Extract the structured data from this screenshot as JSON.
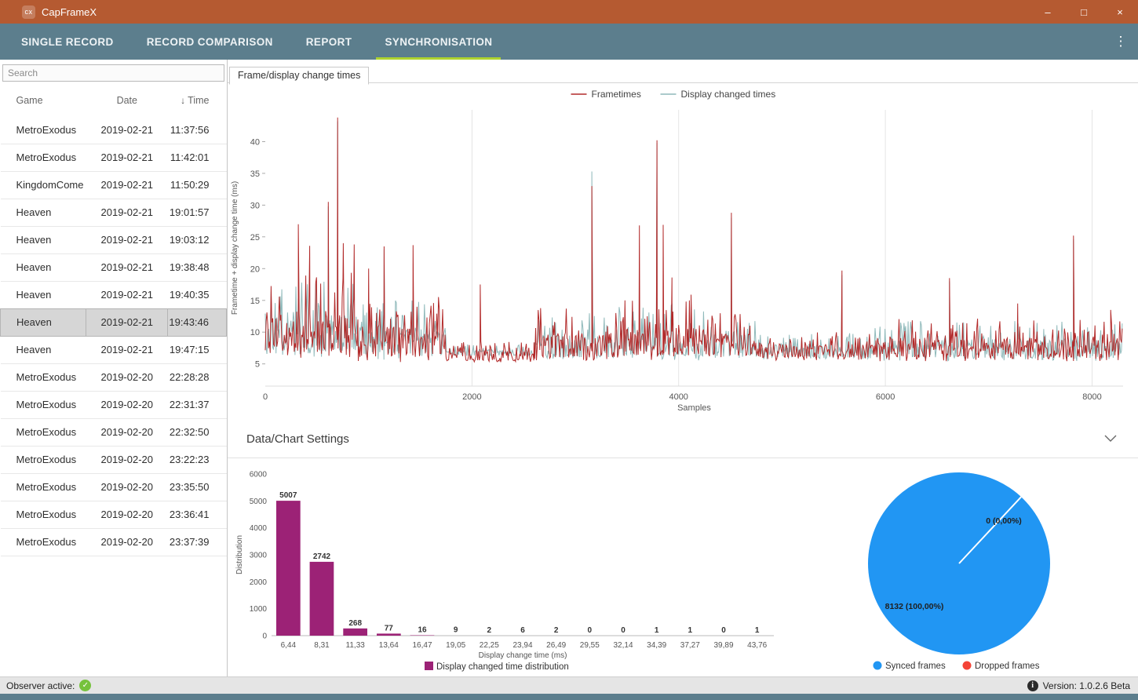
{
  "titlebar": {
    "app_title": "CapFrameX",
    "logo_text": "cx",
    "minimize": "–",
    "maximize": "□",
    "close": "×"
  },
  "navbar": {
    "menu_icon": "⋮",
    "tabs": [
      {
        "label": "SINGLE RECORD",
        "active": false
      },
      {
        "label": "RECORD COMPARISON",
        "active": false
      },
      {
        "label": "REPORT",
        "active": false
      },
      {
        "label": "SYNCHRONISATION",
        "active": true
      }
    ]
  },
  "sidebar": {
    "search_placeholder": "Search",
    "sort_icon": "↓",
    "columns": {
      "game": "Game",
      "date": "Date",
      "time": "Time"
    },
    "rows": [
      {
        "game": "MetroExodus",
        "date": "2019-02-21",
        "time": "11:37:56",
        "selected": false
      },
      {
        "game": "MetroExodus",
        "date": "2019-02-21",
        "time": "11:42:01",
        "selected": false
      },
      {
        "game": "KingdomCome",
        "date": "2019-02-21",
        "time": "11:50:29",
        "selected": false
      },
      {
        "game": "Heaven",
        "date": "2019-02-21",
        "time": "19:01:57",
        "selected": false
      },
      {
        "game": "Heaven",
        "date": "2019-02-21",
        "time": "19:03:12",
        "selected": false
      },
      {
        "game": "Heaven",
        "date": "2019-02-21",
        "time": "19:38:48",
        "selected": false
      },
      {
        "game": "Heaven",
        "date": "2019-02-21",
        "time": "19:40:35",
        "selected": false
      },
      {
        "game": "Heaven",
        "date": "2019-02-21",
        "time": "19:43:46",
        "selected": true
      },
      {
        "game": "Heaven",
        "date": "2019-02-21",
        "time": "19:47:15",
        "selected": false
      },
      {
        "game": "MetroExodus",
        "date": "2019-02-20",
        "time": "22:28:28",
        "selected": false
      },
      {
        "game": "MetroExodus",
        "date": "2019-02-20",
        "time": "22:31:37",
        "selected": false
      },
      {
        "game": "MetroExodus",
        "date": "2019-02-20",
        "time": "22:32:50",
        "selected": false
      },
      {
        "game": "MetroExodus",
        "date": "2019-02-20",
        "time": "23:22:23",
        "selected": false
      },
      {
        "game": "MetroExodus",
        "date": "2019-02-20",
        "time": "23:35:50",
        "selected": false
      },
      {
        "game": "MetroExodus",
        "date": "2019-02-20",
        "time": "23:36:41",
        "selected": false
      },
      {
        "game": "MetroExodus",
        "date": "2019-02-20",
        "time": "23:37:39",
        "selected": false
      }
    ]
  },
  "main": {
    "chart_tab_label": "Frame/display change times",
    "settings_label": "Data/Chart Settings"
  },
  "statusbar": {
    "observer_label": "Observer active:",
    "check": "✓",
    "info": "i",
    "version_label": "Version: 1.0.2.6 Beta"
  },
  "colors": {
    "titlebar": "#b55a31",
    "navbar": "#5c7e8d",
    "tab_underline": "#afd32e",
    "frametimes_line": "#b22a2a",
    "display_times_line": "#8fb9ba",
    "bar": "#9c2276",
    "pie_synced": "#2196f3",
    "pie_dropped": "#f44336",
    "observer_check": "#76c23c"
  },
  "chart_data": [
    {
      "type": "line",
      "title": "Frame/display change times",
      "xlabel": "Samples",
      "ylabel": "Frametime + display change time (ms)",
      "xlim": [
        0,
        8300
      ],
      "ylim": [
        1.5,
        45
      ],
      "xticks": [
        0,
        2000,
        4000,
        6000,
        8000
      ],
      "yticks": [
        5,
        10,
        15,
        20,
        25,
        30,
        35,
        40
      ],
      "grid": "vertical-only",
      "legend_position": "top-center",
      "series": [
        {
          "name": "Frametimes",
          "color": "#b22a2a",
          "seed": 1234,
          "baseline_segments": [
            [
              0,
              280,
              9.5,
              5.5
            ],
            [
              280,
              900,
              10,
              6.5
            ],
            [
              900,
              1750,
              8.5,
              5
            ],
            [
              1750,
              2600,
              6.3,
              1.6
            ],
            [
              2600,
              3400,
              8,
              4
            ],
            [
              3400,
              4250,
              8.5,
              4.5
            ],
            [
              4250,
              4750,
              8,
              3.5
            ],
            [
              4750,
              5900,
              7,
              2.2
            ],
            [
              5900,
              7100,
              7.5,
              3.2
            ],
            [
              7100,
              8300,
              7.5,
              3.2
            ]
          ],
          "peaks": [
            [
              320,
              27
            ],
            [
              430,
              23.6
            ],
            [
              610,
              30.5
            ],
            [
              700,
              43.8
            ],
            [
              755,
              24
            ],
            [
              860,
              23.8
            ],
            [
              1000,
              20
            ],
            [
              1150,
              23.5
            ],
            [
              1430,
              23.7
            ],
            [
              2080,
              17.5
            ],
            [
              3160,
              33
            ],
            [
              3620,
              26.8
            ],
            [
              3790,
              40.2
            ],
            [
              3850,
              26.9
            ],
            [
              3935,
              18.6
            ],
            [
              4120,
              15.9
            ],
            [
              4510,
              28.8
            ],
            [
              5580,
              19.7
            ],
            [
              6620,
              18.5
            ],
            [
              7280,
              14.5
            ],
            [
              7820,
              25.2
            ],
            [
              8180,
              13.5
            ]
          ]
        },
        {
          "name": "Display changed times",
          "color": "#8fb9ba",
          "seed": 777,
          "baseline_segments": [
            [
              0,
              280,
              9.5,
              5
            ],
            [
              280,
              900,
              10,
              6
            ],
            [
              900,
              1750,
              8.5,
              4.5
            ],
            [
              1750,
              2600,
              6.8,
              0.9
            ],
            [
              2600,
              3400,
              7.8,
              3.6
            ],
            [
              3400,
              4250,
              8.3,
              4.2
            ],
            [
              4250,
              4750,
              7.8,
              3.2
            ],
            [
              4750,
              5900,
              7,
              2
            ],
            [
              5900,
              7100,
              7.4,
              3
            ],
            [
              7100,
              8300,
              7.4,
              3
            ]
          ],
          "peaks": [
            [
              610,
              29.8
            ],
            [
              700,
              43.2
            ],
            [
              1150,
              23
            ],
            [
              3160,
              35.3
            ],
            [
              3790,
              39.8
            ],
            [
              4510,
              28
            ],
            [
              5580,
              19
            ],
            [
              6620,
              18
            ],
            [
              7820,
              24.6
            ]
          ]
        }
      ]
    },
    {
      "type": "bar",
      "categories": [
        "6,44",
        "8,31",
        "11,33",
        "13,64",
        "16,47",
        "19,05",
        "22,25",
        "23,94",
        "26,49",
        "29,55",
        "32,14",
        "34,39",
        "37,27",
        "39,89",
        "43,76"
      ],
      "values": [
        5007,
        2742,
        268,
        77,
        16,
        9,
        2,
        6,
        2,
        0,
        0,
        1,
        1,
        0,
        1
      ],
      "xlabel": "Display change time (ms)",
      "ylabel": "Distribution",
      "ylim": [
        0,
        6000
      ],
      "yticks": [
        0,
        1000,
        2000,
        3000,
        4000,
        5000,
        6000
      ],
      "bar_color": "#9c2276",
      "legend": [
        {
          "name": "Display changed time distribution",
          "color": "#9c2276"
        }
      ]
    },
    {
      "type": "pie",
      "slices": [
        {
          "name": "Synced frames",
          "value": 8132,
          "label": "8132 (100,00%)",
          "color": "#2196f3"
        },
        {
          "name": "Dropped frames",
          "value": 0,
          "label": "0 (0,00%)",
          "color": "#f44336"
        }
      ],
      "legend_position": "bottom"
    }
  ]
}
